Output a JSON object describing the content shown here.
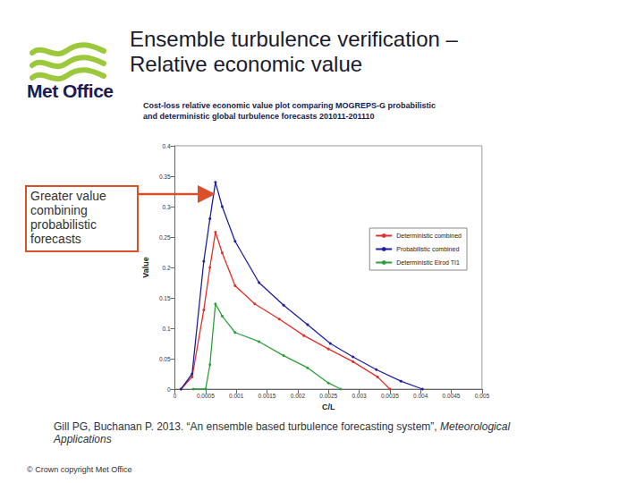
{
  "header": {
    "logo": "Met Office",
    "title": "Ensemble turbulence verification –\nRelative economic value"
  },
  "chart_data": {
    "type": "line",
    "title": "Cost-loss relative economic value plot comparing MOGREPS-G probabilistic\nand deterministic global turbulence forecasts 201011-201110",
    "x_label": "C/L",
    "y_label": "Value",
    "xlim": [
      0,
      0.005
    ],
    "xticks": [
      0,
      0.0005,
      0.001,
      0.0015,
      0.002,
      0.0025,
      0.003,
      0.0035,
      0.004,
      0.0045,
      0.005
    ],
    "ylim": [
      0,
      0.4
    ],
    "yticks": [
      0,
      0.05,
      0.1,
      0.15,
      0.2,
      0.25,
      0.3,
      0.35,
      0.4
    ],
    "grid": false,
    "legend": "right",
    "marker": "circle",
    "annotations": [
      "Greater value combining probabilistic forecasts"
    ],
    "series": [
      {
        "name": "Deterministic combined",
        "color": "#e0302a",
        "x": [
          0.0001,
          0.00028,
          0.00047,
          0.00057,
          0.00066,
          0.00077,
          0.00098,
          0.0013,
          0.0017,
          0.0021,
          0.0025,
          0.0029,
          0.0033,
          0.0035
        ],
        "values": [
          0,
          0.02,
          0.13,
          0.2,
          0.258,
          0.224,
          0.17,
          0.14,
          0.115,
          0.088,
          0.066,
          0.045,
          0.02,
          0
        ]
      },
      {
        "name": "Probabilistic combined",
        "color": "#1f1f9e",
        "x": [
          0.0001,
          0.00028,
          0.00047,
          0.00057,
          0.00066,
          0.00077,
          0.00098,
          0.00137,
          0.00177,
          0.00216,
          0.00253,
          0.0029,
          0.00328,
          0.00368,
          0.00403
        ],
        "values": [
          0,
          0.025,
          0.21,
          0.28,
          0.34,
          0.3,
          0.243,
          0.175,
          0.138,
          0.106,
          0.075,
          0.053,
          0.032,
          0.013,
          0
        ]
      },
      {
        "name": "Deterministic Elrod TI1",
        "color": "#2e9e3a",
        "x": [
          0.0003,
          0.0005,
          0.00057,
          0.00066,
          0.00077,
          0.00098,
          0.00137,
          0.00177,
          0.00216,
          0.0025,
          0.0027
        ],
        "values": [
          0,
          0,
          0.04,
          0.14,
          0.12,
          0.093,
          0.078,
          0.055,
          0.035,
          0.01,
          0
        ]
      }
    ]
  },
  "footer": {
    "citation": "Gill PG, Buchanan P. 2013. “An ensemble based turbulence forecasting system”, ",
    "journal": "Meteorological Applications",
    "copyright": "© Crown copyright   Met Office"
  }
}
